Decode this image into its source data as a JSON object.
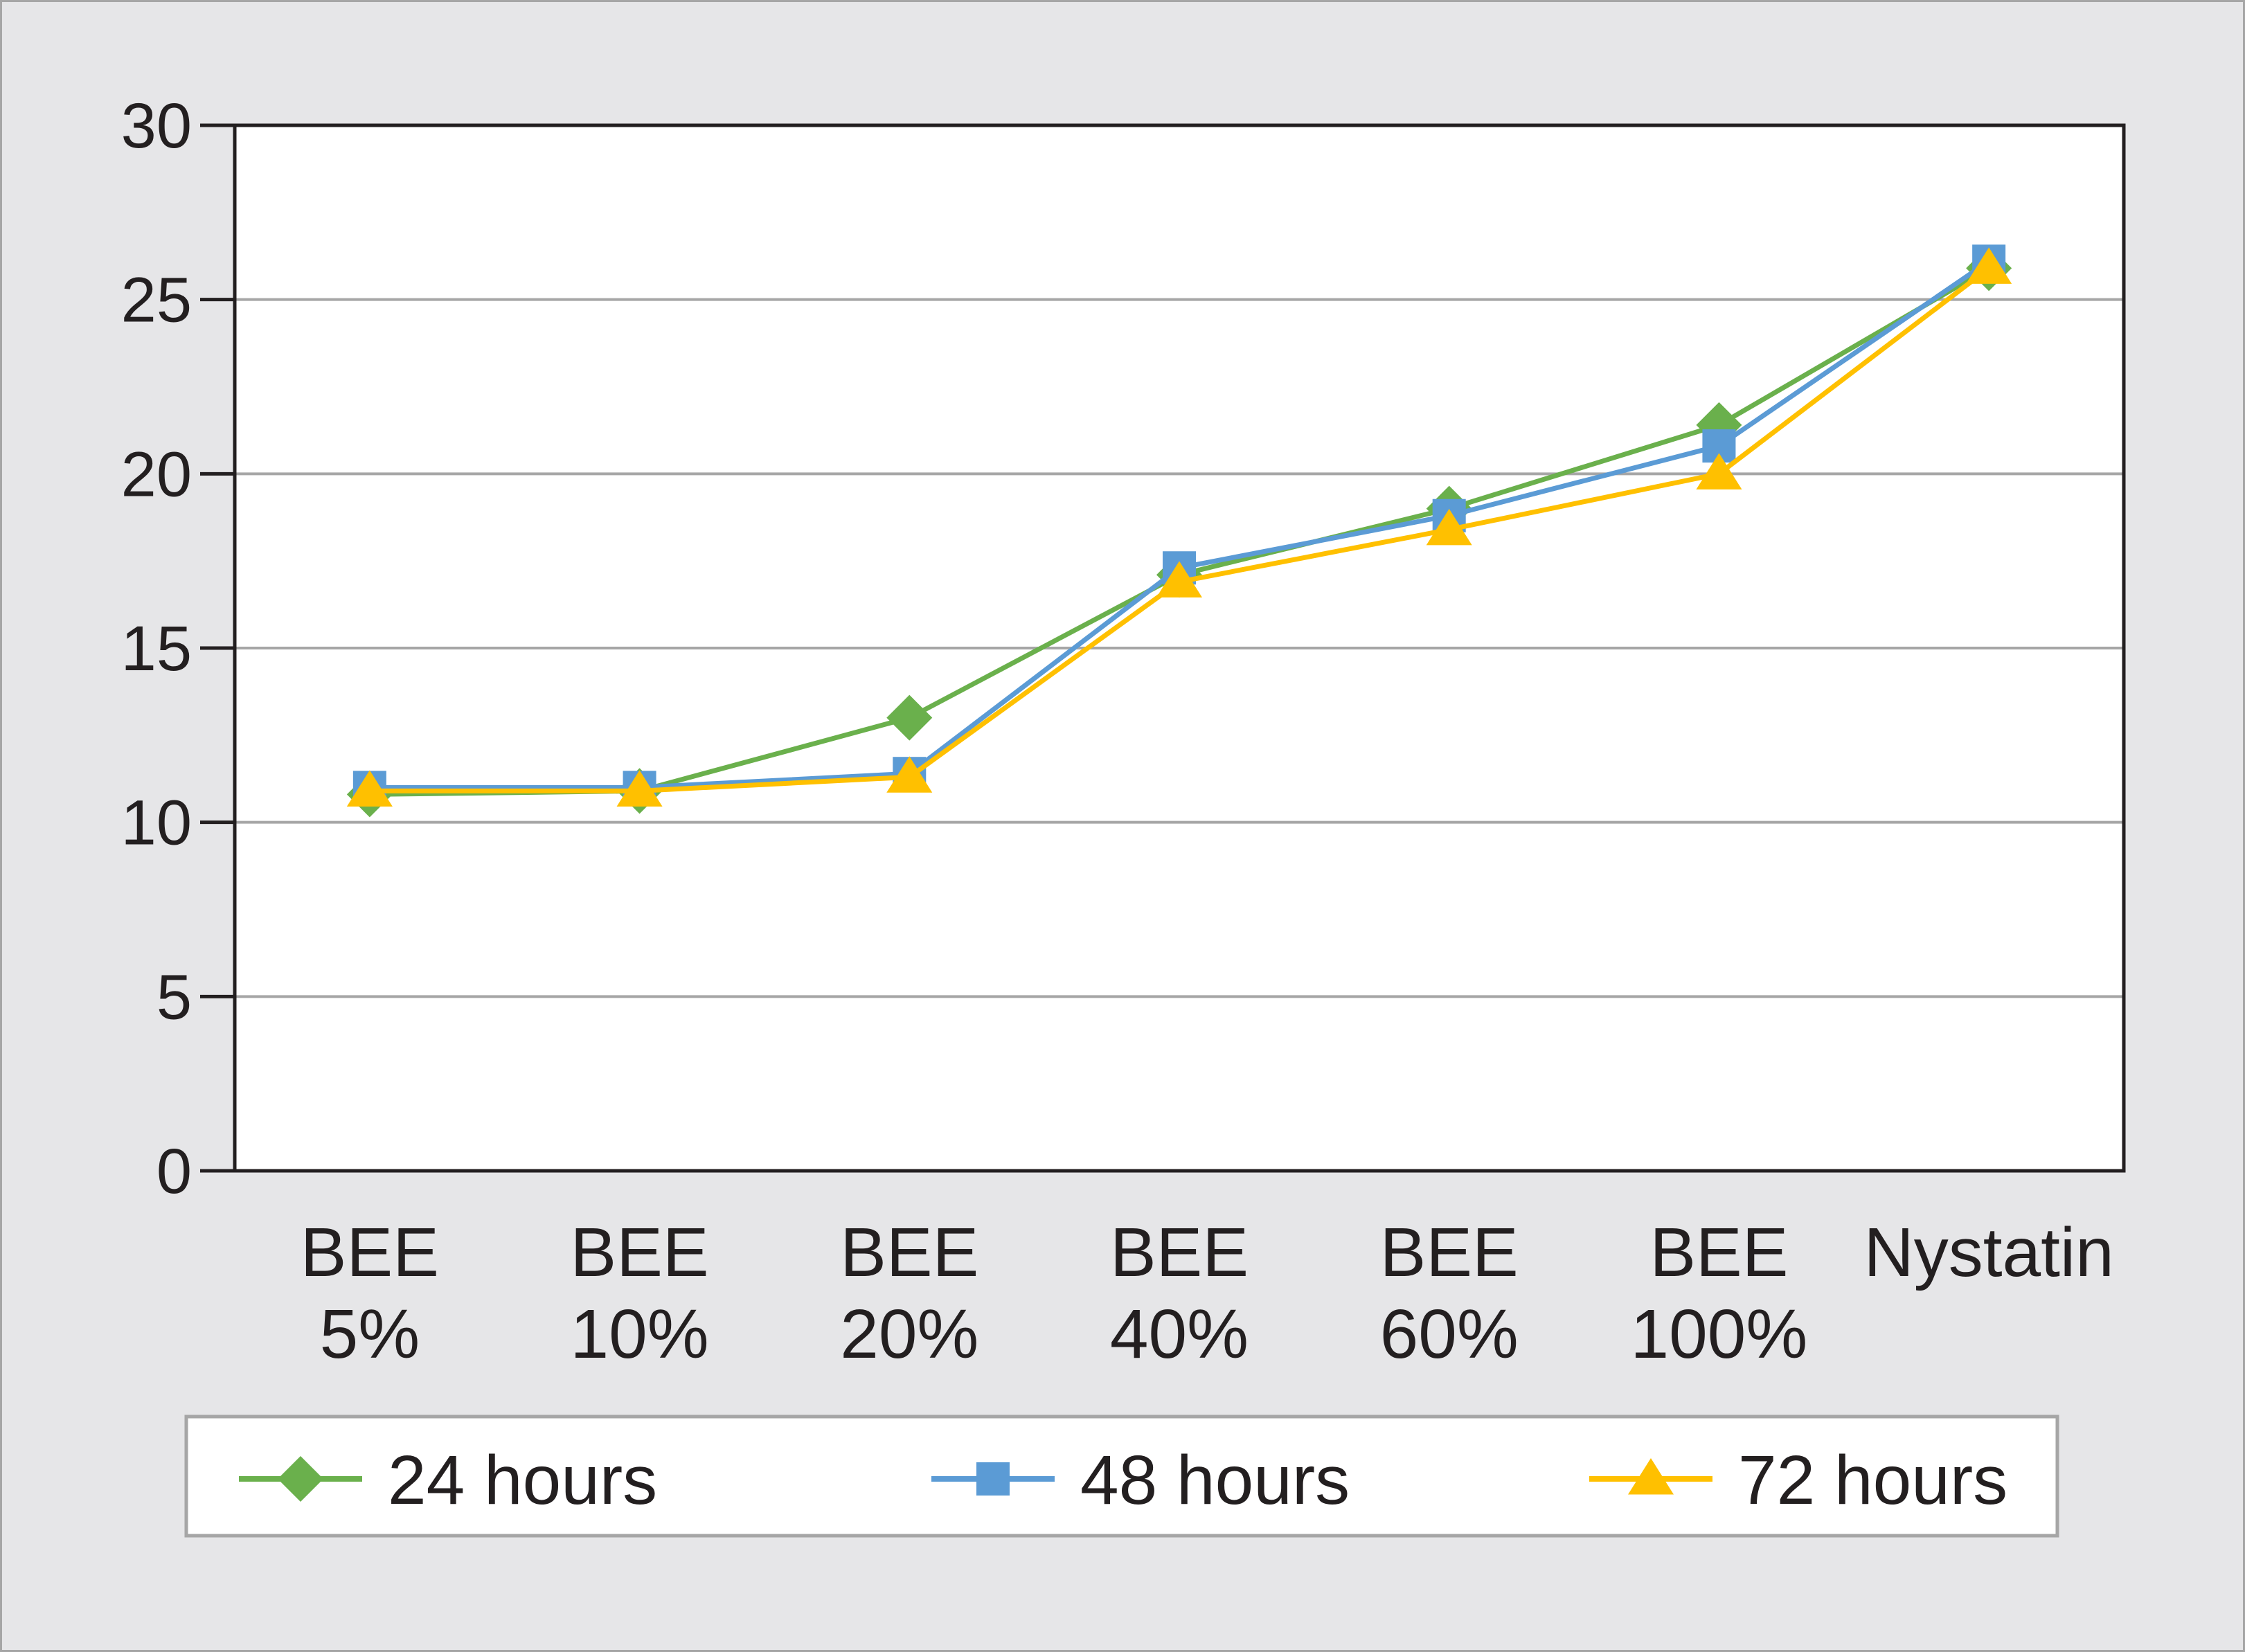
{
  "chart_data": {
    "type": "line",
    "categories": [
      [
        "BEE",
        "5%"
      ],
      [
        "BEE",
        "10%"
      ],
      [
        "BEE",
        "20%"
      ],
      [
        "BEE",
        "40%"
      ],
      [
        "BEE",
        "60%"
      ],
      [
        "BEE",
        "100%"
      ],
      [
        "Nystatin"
      ]
    ],
    "series": [
      {
        "name": "24 hours",
        "values": [
          10.8,
          10.9,
          13.0,
          17.1,
          19.0,
          21.4,
          25.9
        ],
        "color": "#6ab04c",
        "marker": "diamond"
      },
      {
        "name": "48 hours",
        "values": [
          11.0,
          11.0,
          11.4,
          17.3,
          18.8,
          20.8,
          26.1
        ],
        "color": "#5b9bd5",
        "marker": "square"
      },
      {
        "name": "72 hours",
        "values": [
          10.9,
          10.9,
          11.3,
          16.9,
          18.4,
          20.0,
          25.9
        ],
        "color": "#ffc000",
        "marker": "triangle"
      }
    ],
    "yticks": [
      0,
      5,
      10,
      15,
      20,
      25,
      30
    ],
    "ylim": [
      0,
      30
    ],
    "grid": true,
    "legend": "bottom",
    "title": "",
    "xlabel": "",
    "ylabel": ""
  }
}
